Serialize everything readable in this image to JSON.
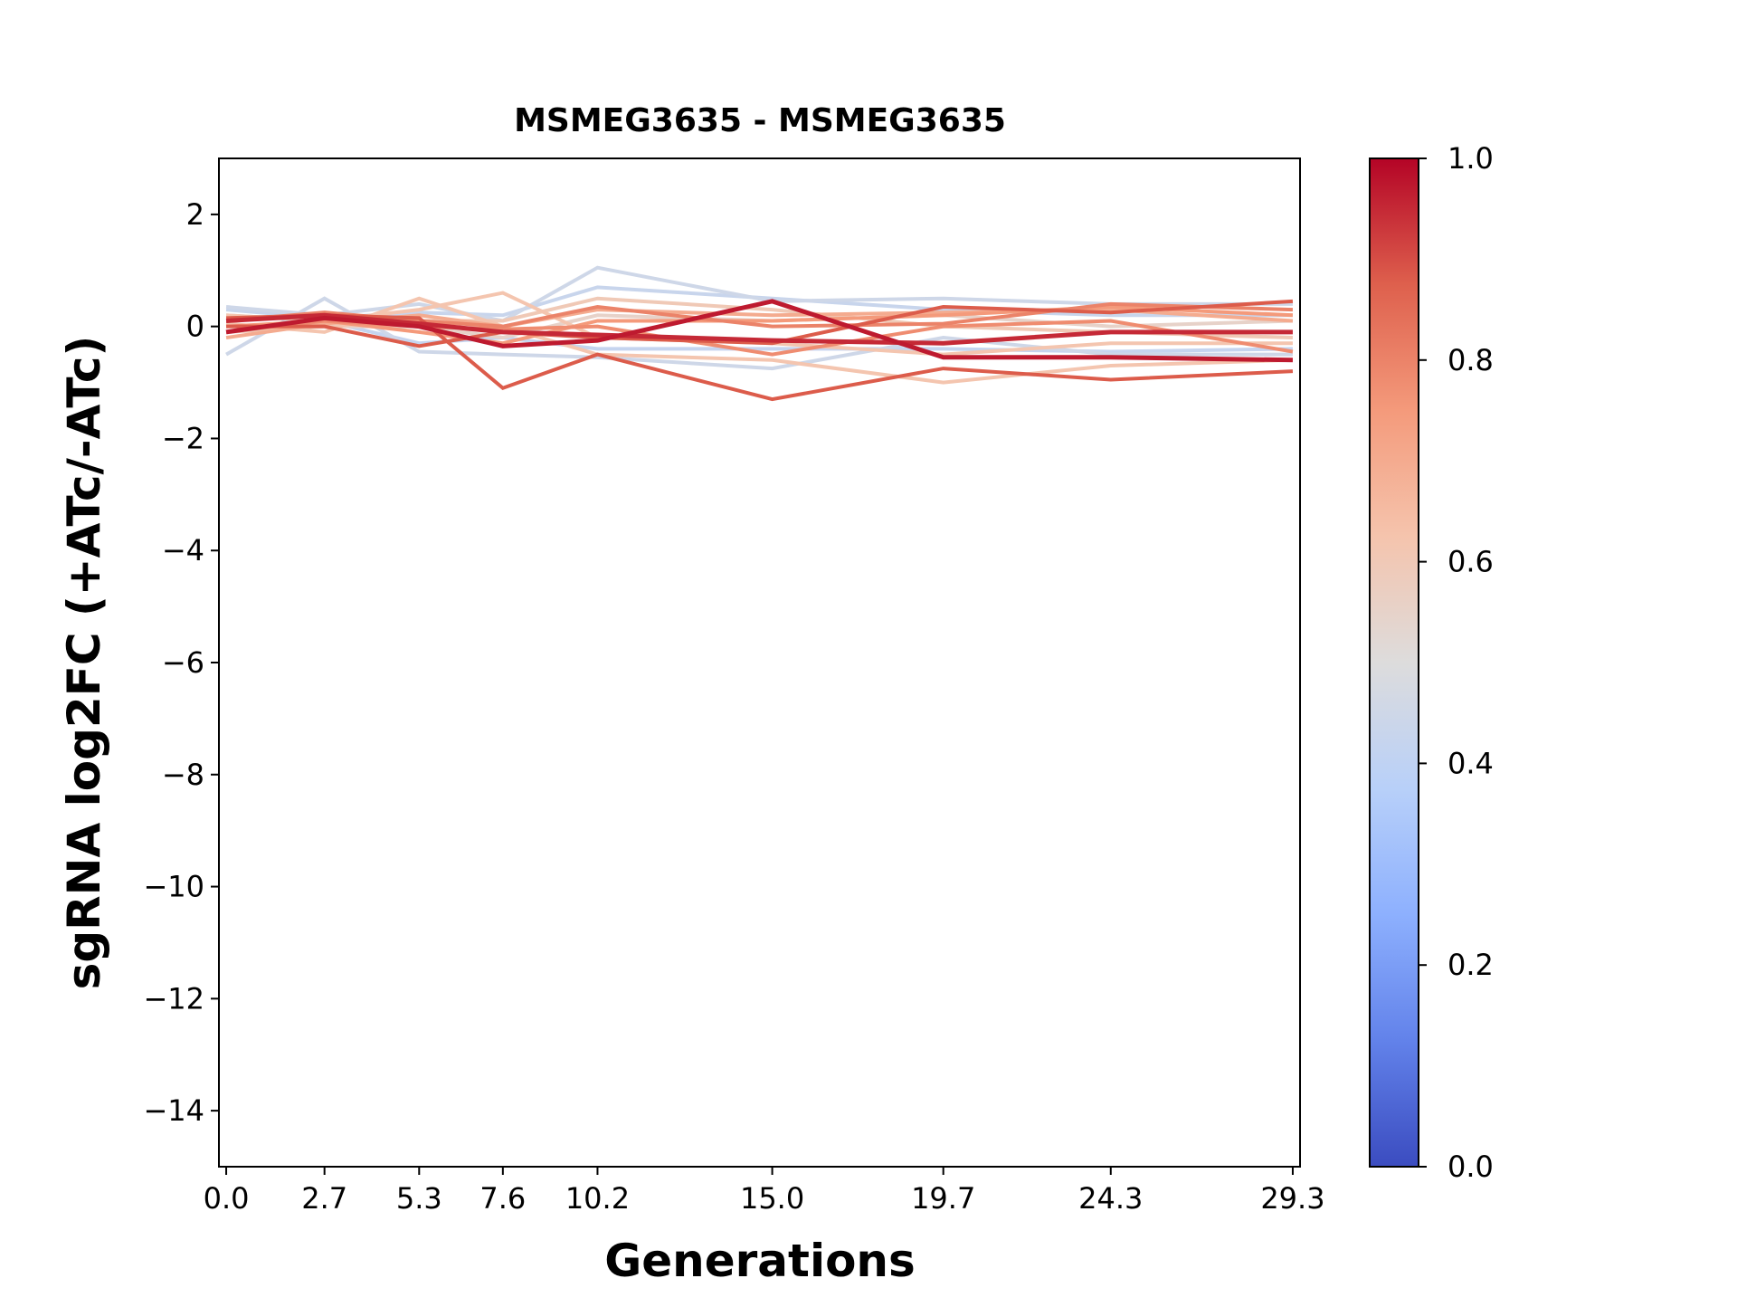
{
  "chart_data": {
    "type": "line",
    "title": "MSMEG3635 - MSMEG3635",
    "xlabel": "Generations",
    "ylabel": "sgRNA log2FC (+ATc/-ATc)",
    "x": [
      0.0,
      2.7,
      5.3,
      7.6,
      10.2,
      15.0,
      19.7,
      24.3,
      29.3
    ],
    "x_tick_labels": [
      "0.0",
      "2.7",
      "5.3",
      "7.6",
      "10.2",
      "15.0",
      "19.7",
      "24.3",
      "29.3"
    ],
    "xlim": [
      -0.2,
      29.5
    ],
    "ylim": [
      -15,
      3
    ],
    "y_ticks": [
      2,
      0,
      -2,
      -4,
      -6,
      -8,
      -10,
      -12,
      -14
    ],
    "y_tick_labels": [
      "2",
      "0",
      "−2",
      "−4",
      "−6",
      "−8",
      "−10",
      "−12",
      "−14"
    ],
    "grid": false,
    "colormap": "coolwarm",
    "colorbar": {
      "range": [
        0.0,
        1.0
      ],
      "tick_labels": [
        "0.0",
        "0.2",
        "0.4",
        "0.6",
        "0.8",
        "1.0"
      ]
    },
    "series": [
      {
        "color_value": 0.42,
        "values": [
          0.2,
          0.1,
          -0.3,
          -0.2,
          -0.4,
          -0.4,
          -0.4,
          -0.45,
          -0.4
        ]
      },
      {
        "color_value": 0.43,
        "values": [
          0.3,
          0.15,
          0.25,
          0.2,
          0.7,
          0.5,
          0.3,
          0.2,
          0.2
        ]
      },
      {
        "color_value": 0.45,
        "values": [
          0.35,
          0.2,
          0.4,
          0.1,
          1.05,
          0.45,
          0.5,
          0.4,
          0.4
        ]
      },
      {
        "color_value": 0.45,
        "values": [
          -0.5,
          0.5,
          -0.45,
          -0.5,
          -0.55,
          -0.75,
          -0.2,
          -0.5,
          -0.5
        ]
      },
      {
        "color_value": 0.55,
        "values": [
          0.0,
          0.0,
          0.0,
          -0.2,
          0.2,
          0.1,
          0.2,
          0.0,
          0.1
        ]
      },
      {
        "color_value": 0.6,
        "values": [
          -0.1,
          0.0,
          0.1,
          0.1,
          0.5,
          0.3,
          0.0,
          -0.1,
          -0.2
        ]
      },
      {
        "color_value": 0.62,
        "values": [
          0.05,
          -0.1,
          0.5,
          0.0,
          -0.5,
          -0.6,
          -1.0,
          -0.7,
          -0.6
        ]
      },
      {
        "color_value": 0.62,
        "values": [
          0.2,
          0.1,
          0.3,
          0.6,
          -0.2,
          -0.3,
          -0.5,
          -0.3,
          -0.3
        ]
      },
      {
        "color_value": 0.7,
        "values": [
          -0.2,
          0.05,
          0.2,
          0.0,
          0.3,
          0.2,
          0.25,
          0.3,
          0.1
        ]
      },
      {
        "color_value": 0.75,
        "values": [
          0.0,
          0.1,
          -0.1,
          -0.3,
          0.1,
          0.1,
          0.2,
          0.35,
          0.2
        ]
      },
      {
        "color_value": 0.78,
        "values": [
          -0.1,
          0.1,
          0.0,
          -0.05,
          0.0,
          -0.5,
          0.0,
          0.1,
          -0.45
        ]
      },
      {
        "color_value": 0.8,
        "values": [
          0.1,
          0.25,
          0.1,
          0.0,
          0.35,
          0.0,
          0.05,
          0.4,
          0.3
        ]
      },
      {
        "color_value": 0.88,
        "values": [
          0.15,
          0.2,
          0.15,
          -1.1,
          -0.5,
          -1.3,
          -0.75,
          -0.95,
          -0.8
        ]
      },
      {
        "color_value": 0.88,
        "values": [
          0.0,
          0.0,
          -0.35,
          -0.1,
          -0.2,
          -0.3,
          0.35,
          0.25,
          0.45
        ]
      },
      {
        "color_value": 0.95,
        "values": [
          0.1,
          0.2,
          0.05,
          -0.1,
          -0.15,
          -0.25,
          -0.3,
          -0.1,
          -0.1
        ]
      },
      {
        "color_value": 0.97,
        "values": [
          -0.1,
          0.15,
          0.0,
          -0.35,
          -0.25,
          0.45,
          -0.55,
          -0.55,
          -0.6
        ]
      }
    ]
  }
}
